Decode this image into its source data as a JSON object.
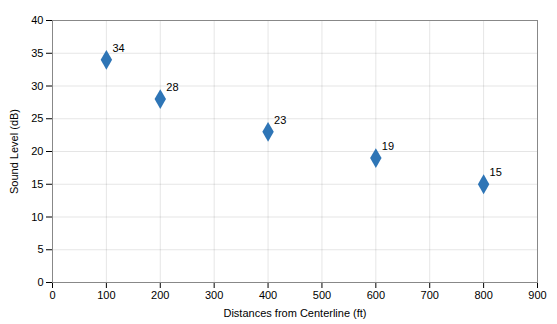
{
  "chart_data": {
    "type": "scatter",
    "x": [
      100,
      200,
      400,
      600,
      800
    ],
    "values": [
      34,
      28,
      23,
      19,
      15
    ],
    "xlabel": "Distances from Centerline (ft)",
    "ylabel": "Sound Level (dB)",
    "xlim": [
      0,
      900
    ],
    "ylim": [
      0,
      40
    ],
    "xticks": [
      0,
      100,
      200,
      300,
      400,
      500,
      600,
      700,
      800,
      900
    ],
    "yticks": [
      0,
      5,
      10,
      15,
      20,
      25,
      30,
      35,
      40
    ],
    "grid": true,
    "color": "#2E75B6",
    "marker": "diamond",
    "data_labels": true
  }
}
